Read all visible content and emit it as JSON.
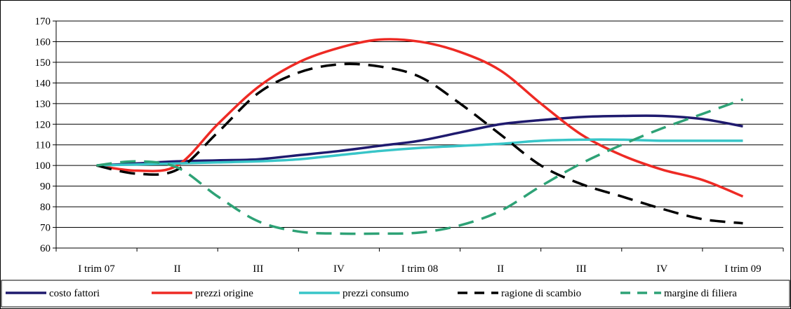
{
  "chart_data": {
    "type": "line",
    "title": "",
    "xlabel": "",
    "ylabel": "",
    "ylim": [
      60,
      170
    ],
    "yticks": [
      60,
      70,
      80,
      90,
      100,
      110,
      120,
      130,
      140,
      150,
      160,
      170
    ],
    "grid": "horizontal",
    "legend": "bottom",
    "categories": [
      "I trim 07",
      "II",
      "III",
      "IV",
      "I trim 08",
      "II",
      "III",
      "IV",
      "I trim 09"
    ],
    "x": [
      0,
      0.5,
      1,
      1.5,
      2,
      2.5,
      3,
      3.5,
      4,
      4.5,
      5,
      5.5,
      6,
      6.5,
      7,
      7.5,
      8
    ],
    "series": [
      {
        "name": "costo fattori",
        "color": "#1f1a6e",
        "dash": "solid",
        "values": [
          100,
          101,
          102,
          102.5,
          103,
          105,
          107,
          109.5,
          112,
          116,
          120,
          122,
          123.5,
          124,
          124,
          122.5,
          119
        ]
      },
      {
        "name": "prezzi origine",
        "color": "#ee2a24",
        "dash": "solid",
        "values": [
          100,
          97.5,
          100,
          120,
          138,
          150,
          157,
          161,
          160,
          155,
          146,
          130,
          115,
          105,
          98,
          93,
          85
        ]
      },
      {
        "name": "prezzi consumo",
        "color": "#38c5c8",
        "dash": "solid",
        "values": [
          100,
          100.5,
          101,
          101.5,
          102,
          103,
          105,
          107,
          108.5,
          109.5,
          110.5,
          112,
          112.5,
          112.5,
          112,
          112,
          112
        ]
      },
      {
        "name": "ragione di scambio",
        "color": "#000000",
        "dash": "dashed",
        "values": [
          100,
          96,
          98,
          116,
          135,
          145,
          149,
          148,
          143,
          130,
          115,
          100,
          91,
          85,
          79,
          74,
          72
        ]
      },
      {
        "name": "margine di filiera",
        "color": "#2ea276",
        "dash": "dashed",
        "values": [
          100,
          102,
          99,
          85,
          73,
          68,
          67,
          67,
          67.5,
          71,
          78,
          90,
          101,
          110,
          118,
          125,
          132
        ]
      }
    ]
  }
}
